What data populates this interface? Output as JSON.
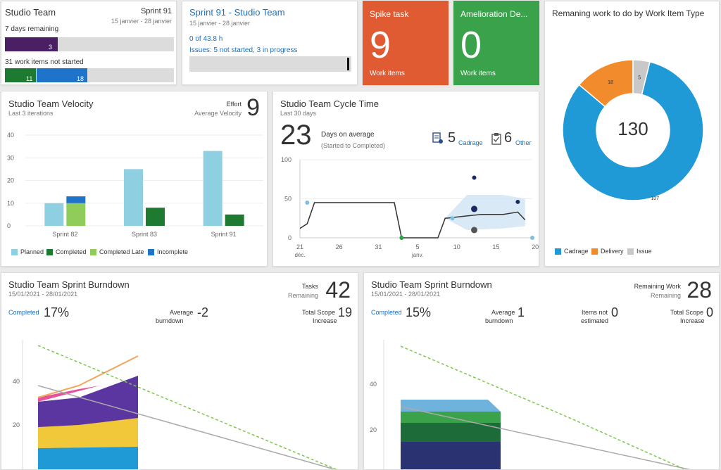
{
  "sprint_tile": {
    "title": "Studio Team",
    "sprint": "Sprint 91",
    "dates": "15 janvier - 28 janvier",
    "days_remaining": "7 days remaining",
    "days_bar_value": "3",
    "work_items": "31 work items not started",
    "bar_a": "11",
    "bar_b": "18"
  },
  "sprint_link_tile": {
    "title": "Sprint 91 - Studio Team",
    "dates": "15 janvier - 28 janvier",
    "hours": "0 of 43.8 h",
    "issues": "Issues: 5 not started, 3 in progress"
  },
  "spike_tile": {
    "title": "Spike task",
    "count": "9",
    "label": "Work items",
    "color": "#e05a32"
  },
  "amelioration_tile": {
    "title": "Amelioration De...",
    "count": "0",
    "label": "Work items",
    "color": "#3aa24b"
  },
  "donut_tile": {
    "title": "Remaning work to do by Work Item Type",
    "total": "130",
    "chart_data": {
      "type": "pie",
      "categories": [
        "Cadrage",
        "Delivery",
        "Issue"
      ],
      "values": [
        107,
        18,
        5
      ],
      "colors": [
        "#1f9ad6",
        "#f28b2b",
        "#c8c8c8"
      ]
    }
  },
  "velocity_tile": {
    "title": "Studio Team Velocity",
    "subtitle": "Last 3 iterations",
    "metric": "Effort",
    "metric_sub": "Average Velocity",
    "value": "9",
    "chart_data": {
      "type": "bar",
      "categories": [
        "Sprint 82",
        "Sprint 83",
        "Sprint 91"
      ],
      "series": [
        {
          "name": "Planned",
          "values": [
            10,
            25,
            33
          ],
          "color": "#8ecfe2"
        },
        {
          "name": "Completed",
          "values": [
            0,
            8,
            5
          ],
          "color": "#1f7a31"
        },
        {
          "name": "Completed Late",
          "values": [
            10,
            0,
            0
          ],
          "color": "#8fcc5a"
        },
        {
          "name": "Incomplete",
          "values": [
            3,
            0,
            0
          ],
          "color": "#1f74c9"
        }
      ],
      "yticks": [
        "0",
        "10",
        "20",
        "30",
        "40"
      ],
      "ylim": [
        0,
        40
      ]
    }
  },
  "cycle_tile": {
    "title": "Studio Team Cycle Time",
    "subtitle": "Last 30 days",
    "value": "23",
    "value_label": "Days on average",
    "value_sub": "(Started to Completed)",
    "cadrage_count": "5",
    "cadrage_label": "Cadrage",
    "other_count": "6",
    "other_label": "Other",
    "chart_data": {
      "type": "line",
      "xlabels": [
        "21",
        "26",
        "31",
        "5",
        "10",
        "15",
        "20"
      ],
      "xsublabels": [
        "déc.",
        "",
        "",
        "janv.",
        "",
        "",
        ""
      ],
      "yticks": [
        "0",
        "50",
        "100"
      ],
      "ylim": [
        0,
        100
      ],
      "moving_average": [
        [
          0,
          12
        ],
        [
          1,
          18
        ],
        [
          2,
          45
        ],
        [
          13,
          45
        ],
        [
          14,
          0
        ],
        [
          19,
          0
        ],
        [
          20,
          25
        ],
        [
          23,
          28
        ],
        [
          25,
          30
        ],
        [
          28,
          30
        ],
        [
          30,
          33
        ],
        [
          31,
          23
        ]
      ],
      "points": [
        {
          "x": 1,
          "y": 45,
          "r": 3,
          "color": "#7fbfe0"
        },
        {
          "x": 14,
          "y": 0,
          "r": 3,
          "color": "#2aa04a"
        },
        {
          "x": 21,
          "y": 25,
          "r": 3,
          "color": "#7fbfe0"
        },
        {
          "x": 24,
          "y": 77,
          "r": 3,
          "color": "#1a2a66"
        },
        {
          "x": 24,
          "y": 37,
          "r": 4.5,
          "color": "#1a2a66"
        },
        {
          "x": 24,
          "y": 10,
          "r": 4.5,
          "color": "#555555"
        },
        {
          "x": 30,
          "y": 46,
          "r": 3,
          "color": "#1a2a66"
        },
        {
          "x": 32,
          "y": 0,
          "r": 3,
          "color": "#7fbfe0"
        }
      ]
    }
  },
  "burndown_left": {
    "title": "Studio Team Sprint Burndown",
    "dates": "15/01/2021 - 28/01/2021",
    "metric": "Tasks",
    "metric_sub": "Remaining",
    "value": "42",
    "completed_label": "Completed",
    "completed_value": "17%",
    "avg_label": "Average",
    "avg_label2": "burndown",
    "avg_value": "-2",
    "scope_label": "Total Scope",
    "scope_label2": "Increase",
    "scope_value": "19",
    "yticks": [
      "20",
      "40"
    ]
  },
  "burndown_right": {
    "title": "Studio Team Sprint Burndown",
    "dates": "15/01/2021 - 28/01/2021",
    "metric": "Remaining Work",
    "metric_sub": "Remaining",
    "value": "28",
    "completed_label": "Completed",
    "completed_value": "15%",
    "avg_label": "Average",
    "avg_label2": "burndown",
    "avg_value": "1",
    "est_label": "Items not",
    "est_label2": "estimated",
    "est_value": "0",
    "scope_label": "Total Scope",
    "scope_label2": "Increase",
    "scope_value": "0",
    "yticks": [
      "20",
      "40"
    ]
  }
}
